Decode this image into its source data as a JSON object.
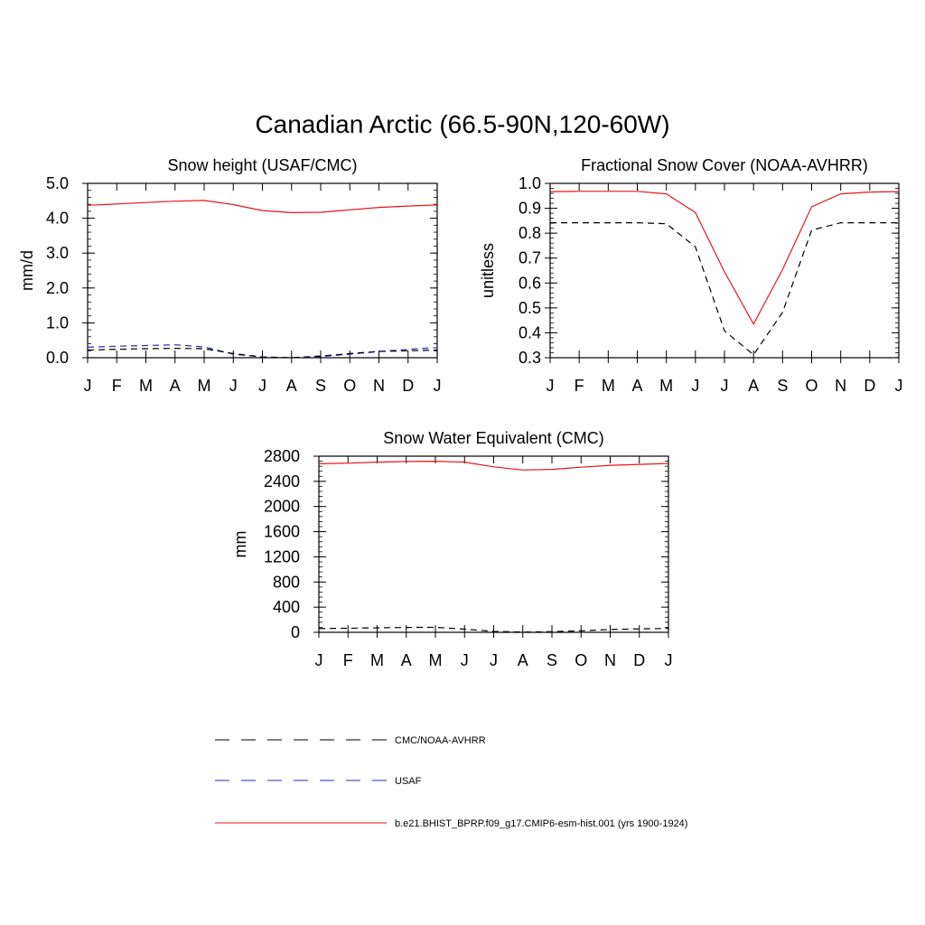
{
  "page_title": "Canadian Arctic (66.5-90N,120-60W)",
  "colors": {
    "model": "#e8141c",
    "usaf": "#2b2bb8",
    "obs": "#000000",
    "axis": "#000000"
  },
  "legend": {
    "items": [
      {
        "label": "CMC/NOAA-AVHRR",
        "color": "#000000",
        "dash": "dashed"
      },
      {
        "label": "USAF",
        "color": "#2b2bb8",
        "dash": "dashed"
      },
      {
        "label": "b.e21.BHIST_BPRP.f09_g17.CMIP6-esm-hist.001 (yrs 1900-1924)",
        "color": "#e8141c",
        "dash": "solid"
      }
    ]
  },
  "chart_data": [
    {
      "id": "snow-height",
      "type": "line",
      "title": "Snow height (USAF/CMC)",
      "xlabel": "",
      "ylabel": "mm/d",
      "categories": [
        "J",
        "F",
        "M",
        "A",
        "M",
        "J",
        "J",
        "A",
        "S",
        "O",
        "N",
        "D",
        "J"
      ],
      "ylim": [
        0,
        5
      ],
      "yticks": [
        0,
        1,
        2,
        3,
        4,
        5
      ],
      "ytick_labels": [
        "0.0",
        "1.0",
        "2.0",
        "3.0",
        "4.0",
        "5.0"
      ],
      "grid": false,
      "series": [
        {
          "name": "b.e21.BHIST_BPRP.f09_g17.CMIP6-esm-hist.001 (yrs 1900-1924)",
          "color": "#e8141c",
          "dash": "solid",
          "values": [
            4.37,
            4.41,
            4.45,
            4.49,
            4.51,
            4.39,
            4.22,
            4.16,
            4.17,
            4.24,
            4.31,
            4.35,
            4.38
          ]
        },
        {
          "name": "USAF",
          "color": "#2b2bb8",
          "dash": "dashed",
          "values": [
            0.3,
            0.33,
            0.35,
            0.37,
            0.31,
            0.1,
            0.02,
            0.0,
            0.03,
            0.1,
            0.18,
            0.24,
            0.29
          ]
        },
        {
          "name": "CMC/NOAA-AVHRR",
          "color": "#000000",
          "dash": "dashed",
          "values": [
            0.22,
            0.24,
            0.26,
            0.27,
            0.26,
            0.12,
            0.02,
            0.0,
            0.05,
            0.12,
            0.18,
            0.2,
            0.22
          ]
        }
      ]
    },
    {
      "id": "snow-cover",
      "type": "line",
      "title": "Fractional Snow Cover (NOAA-AVHRR)",
      "xlabel": "",
      "ylabel": "unitless",
      "categories": [
        "J",
        "F",
        "M",
        "A",
        "M",
        "J",
        "J",
        "A",
        "S",
        "O",
        "N",
        "D",
        "J"
      ],
      "ylim": [
        0.3,
        1.0
      ],
      "yticks": [
        0.3,
        0.4,
        0.5,
        0.6,
        0.7,
        0.8,
        0.9,
        1.0
      ],
      "ytick_labels": [
        "0.3",
        "0.4",
        "0.5",
        "0.6",
        "0.7",
        "0.8",
        "0.9",
        "1.0"
      ],
      "grid": false,
      "series": [
        {
          "name": "b.e21.BHIST_BPRP.f09_g17.CMIP6-esm-hist.001 (yrs 1900-1924)",
          "color": "#e8141c",
          "dash": "solid",
          "values": [
            0.967,
            0.968,
            0.968,
            0.968,
            0.958,
            0.883,
            0.645,
            0.435,
            0.654,
            0.906,
            0.958,
            0.965,
            0.967
          ]
        },
        {
          "name": "CMC/NOAA-AVHRR",
          "color": "#000000",
          "dash": "dashed",
          "values": [
            0.842,
            0.842,
            0.842,
            0.842,
            0.838,
            0.745,
            0.408,
            0.312,
            0.482,
            0.812,
            0.842,
            0.842,
            0.842
          ]
        }
      ]
    },
    {
      "id": "swe",
      "type": "line",
      "title": "Snow Water Equivalent (CMC)",
      "xlabel": "",
      "ylabel": "mm",
      "categories": [
        "J",
        "F",
        "M",
        "A",
        "M",
        "J",
        "J",
        "A",
        "S",
        "O",
        "N",
        "D",
        "J"
      ],
      "ylim": [
        0,
        2800
      ],
      "yticks": [
        0,
        400,
        800,
        1200,
        1600,
        2000,
        2400,
        2800
      ],
      "ytick_labels": [
        "0",
        "400",
        "800",
        "1200",
        "1600",
        "2000",
        "2400",
        "2800"
      ],
      "grid": false,
      "series": [
        {
          "name": "b.e21.BHIST_BPRP.f09_g17.CMIP6-esm-hist.001 (yrs 1900-1924)",
          "color": "#e8141c",
          "dash": "solid",
          "values": [
            2680,
            2690,
            2705,
            2715,
            2720,
            2705,
            2630,
            2580,
            2590,
            2625,
            2655,
            2670,
            2685
          ]
        },
        {
          "name": "CMC/NOAA-AVHRR",
          "color": "#000000",
          "dash": "dashed",
          "values": [
            60,
            65,
            72,
            78,
            80,
            50,
            15,
            5,
            10,
            25,
            45,
            55,
            62
          ]
        }
      ]
    }
  ]
}
